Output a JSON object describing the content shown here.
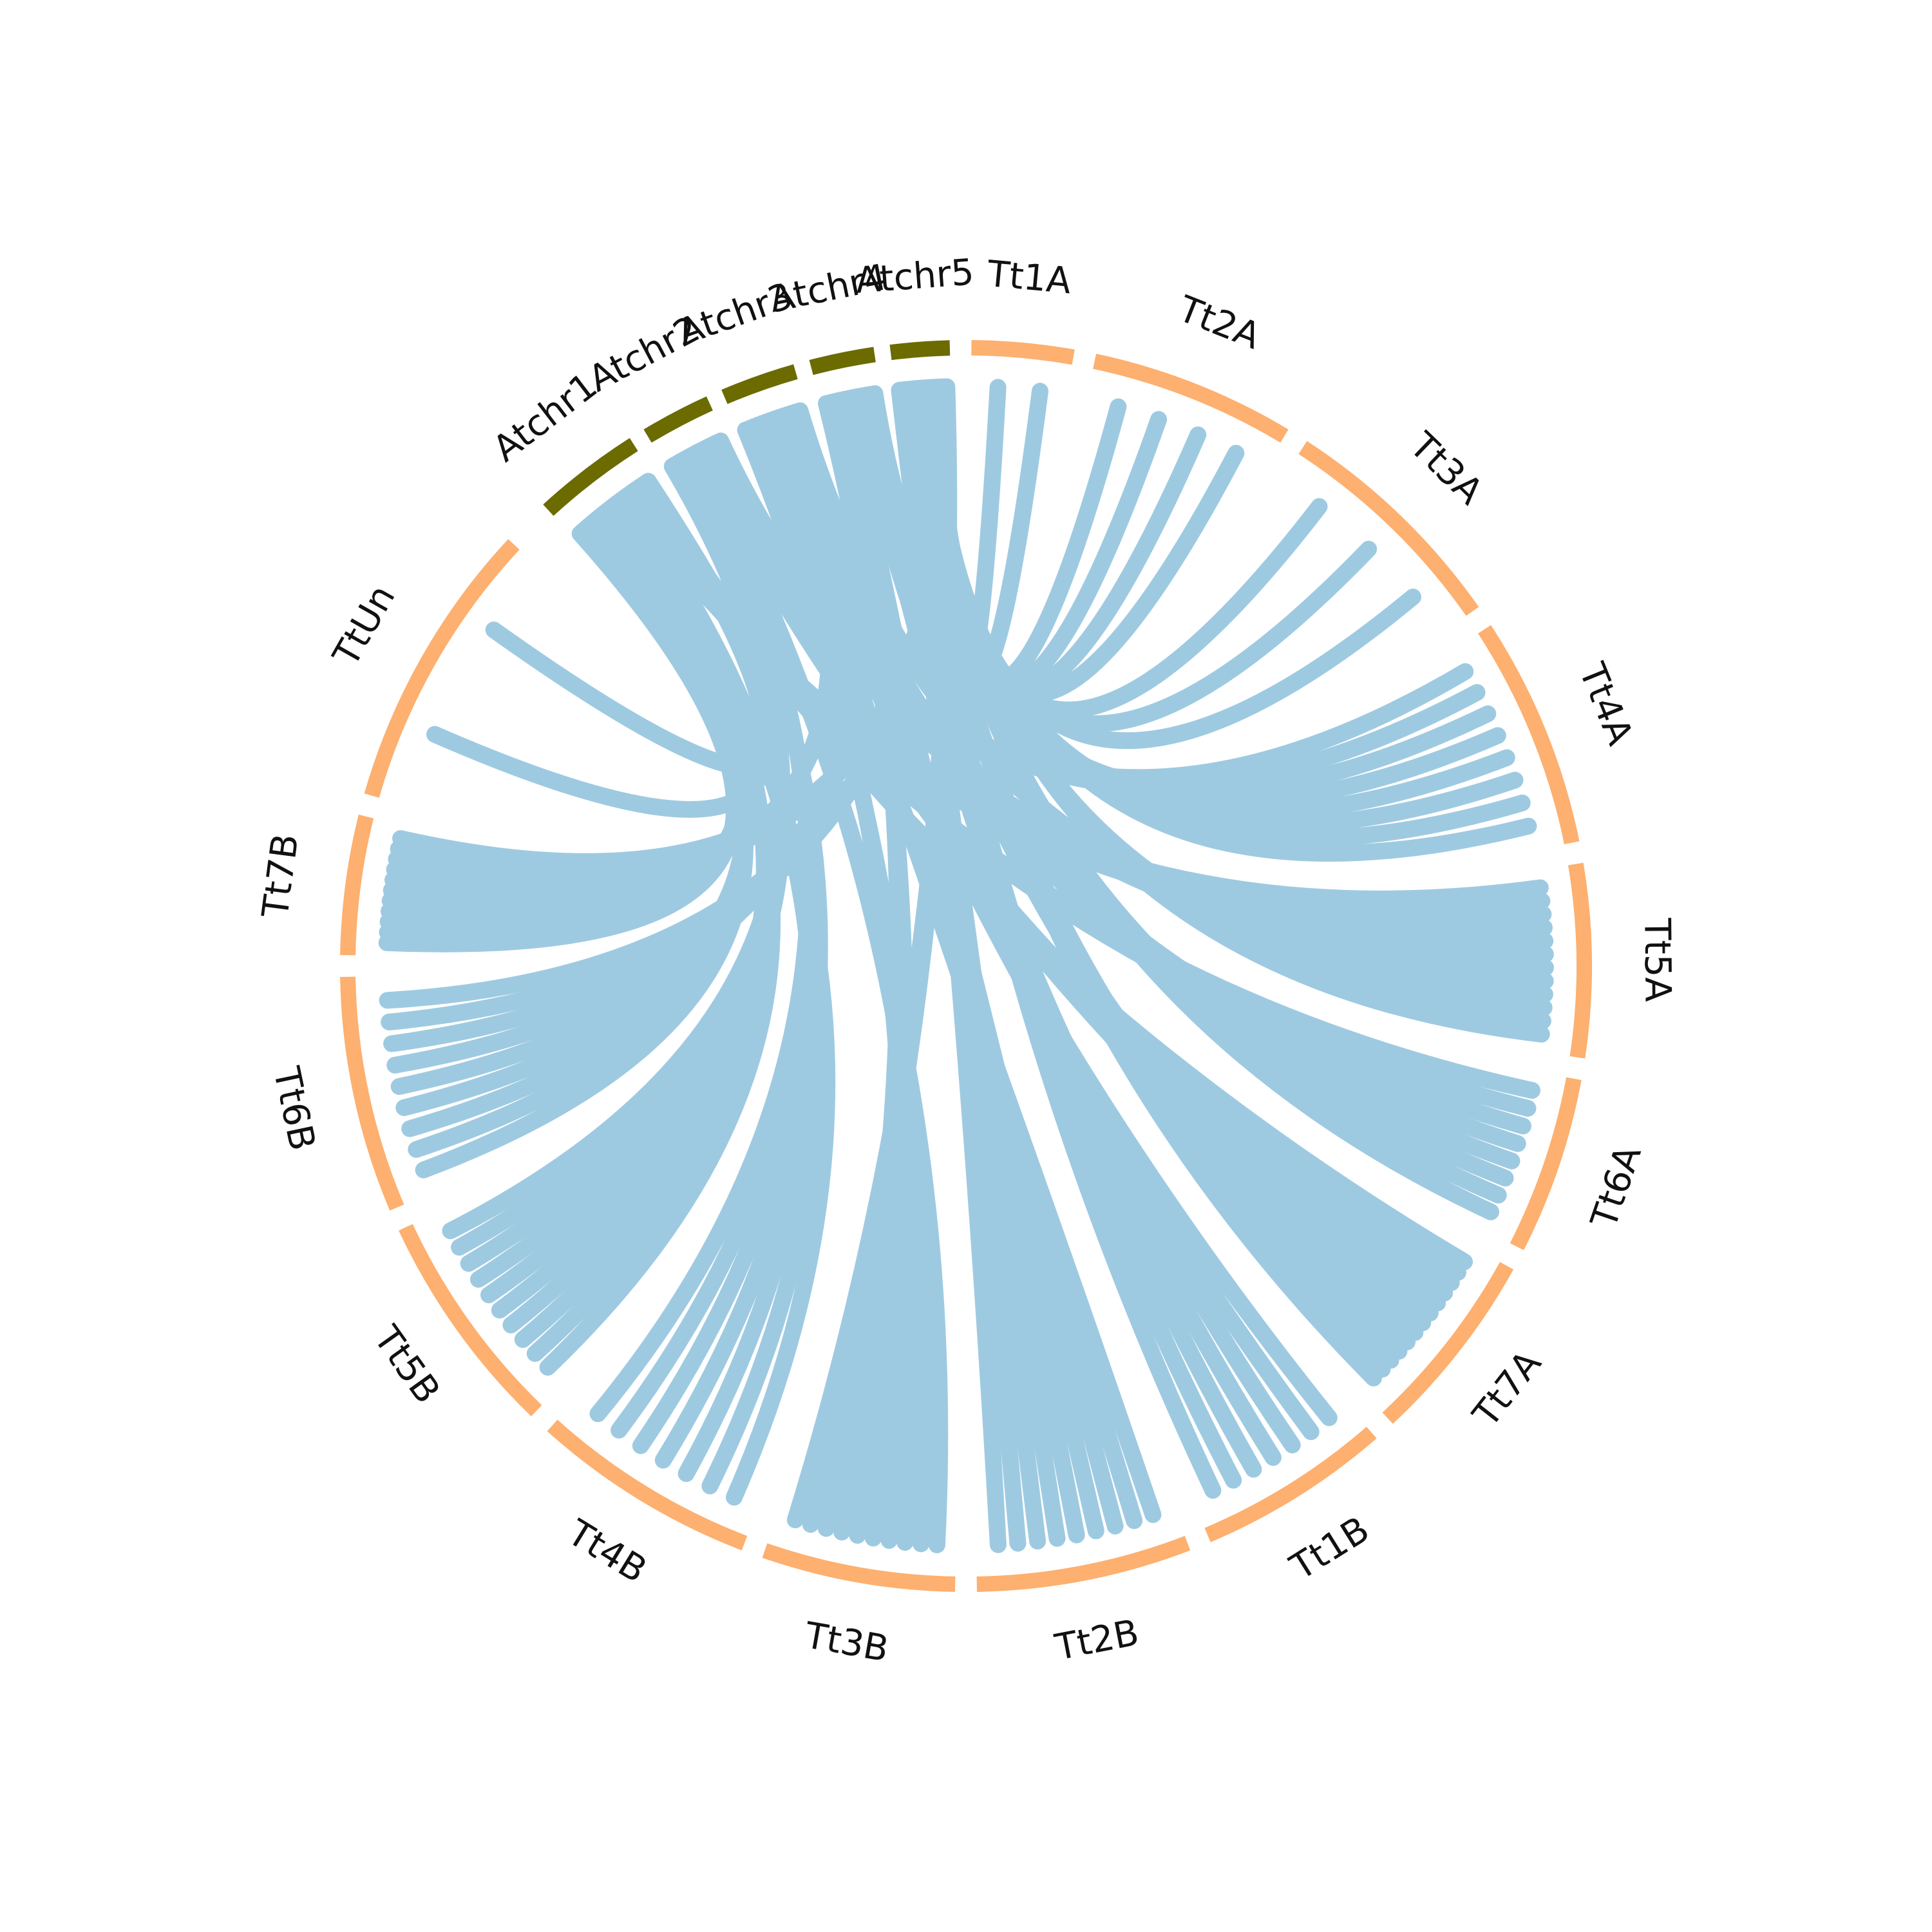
{
  "chart_data": {
    "type": "chord",
    "colors": {
      "arabidopsis": "#6b6b00",
      "wheat": "#fdb06f",
      "link": "#9ecae1"
    },
    "segments": [
      {
        "name": "Atchr1",
        "group": "arabidopsis"
      },
      {
        "name": "Atchr2",
        "group": "arabidopsis"
      },
      {
        "name": "Atchr3",
        "group": "arabidopsis"
      },
      {
        "name": "Atchr4",
        "group": "arabidopsis"
      },
      {
        "name": "Atchr5",
        "group": "arabidopsis"
      },
      {
        "name": "Tt1A",
        "group": "wheat"
      },
      {
        "name": "Tt2A",
        "group": "wheat"
      },
      {
        "name": "Tt3A",
        "group": "wheat"
      },
      {
        "name": "Tt4A",
        "group": "wheat"
      },
      {
        "name": "Tt5A",
        "group": "wheat"
      },
      {
        "name": "Tt6A",
        "group": "wheat"
      },
      {
        "name": "Tt7A",
        "group": "wheat"
      },
      {
        "name": "Tt1B",
        "group": "wheat"
      },
      {
        "name": "Tt2B",
        "group": "wheat"
      },
      {
        "name": "Tt3B",
        "group": "wheat"
      },
      {
        "name": "Tt4B",
        "group": "wheat"
      },
      {
        "name": "Tt5B",
        "group": "wheat"
      },
      {
        "name": "Tt6B",
        "group": "wheat"
      },
      {
        "name": "Tt7B",
        "group": "wheat"
      },
      {
        "name": "TtUn",
        "group": "wheat"
      }
    ],
    "links": [
      {
        "from": "Atchr1",
        "to": "Tt7B",
        "count": 6
      },
      {
        "from": "Atchr1",
        "to": "Tt6B",
        "count": 5
      },
      {
        "from": "Atchr1",
        "to": "Tt5B",
        "count": 6
      },
      {
        "from": "Atchr1",
        "to": "Tt4B",
        "count": 3
      },
      {
        "from": "Atchr1",
        "to": "Tt5A",
        "count": 3
      },
      {
        "from": "Atchr1",
        "to": "Tt6A",
        "count": 2
      },
      {
        "from": "Atchr1",
        "to": "Tt7A",
        "count": 3
      },
      {
        "from": "Atchr1",
        "to": "TtUn",
        "count": 2
      },
      {
        "from": "Atchr2",
        "to": "Tt5B",
        "count": 4
      },
      {
        "from": "Atchr2",
        "to": "Tt4B",
        "count": 4
      },
      {
        "from": "Atchr2",
        "to": "Tt3B",
        "count": 2
      },
      {
        "from": "Atchr2",
        "to": "Tt7A",
        "count": 4
      },
      {
        "from": "Atchr2",
        "to": "Tt5A",
        "count": 3
      },
      {
        "from": "Atchr2",
        "to": "Tt4A",
        "count": 2
      },
      {
        "from": "Atchr3",
        "to": "Tt3B",
        "count": 3
      },
      {
        "from": "Atchr3",
        "to": "Tt2B",
        "count": 2
      },
      {
        "from": "Atchr3",
        "to": "Tt1B",
        "count": 2
      },
      {
        "from": "Atchr3",
        "to": "Tt6A",
        "count": 3
      },
      {
        "from": "Atchr3",
        "to": "Tt7B",
        "count": 2
      },
      {
        "from": "Atchr3",
        "to": "Tt5A",
        "count": 2
      },
      {
        "from": "Atchr4",
        "to": "Tt3B",
        "count": 3
      },
      {
        "from": "Atchr4",
        "to": "Tt2B",
        "count": 3
      },
      {
        "from": "Atchr4",
        "to": "Tt6B",
        "count": 2
      },
      {
        "from": "Atchr4",
        "to": "Tt7A",
        "count": 2
      },
      {
        "from": "Atchr4",
        "to": "Tt1B",
        "count": 2
      },
      {
        "from": "Atchr4",
        "to": "Tt4A",
        "count": 2
      },
      {
        "from": "Atchr5",
        "to": "Tt2B",
        "count": 4
      },
      {
        "from": "Atchr5",
        "to": "Tt1B",
        "count": 3
      },
      {
        "from": "Atchr5",
        "to": "Tt7A",
        "count": 4
      },
      {
        "from": "Atchr5",
        "to": "Tt6A",
        "count": 3
      },
      {
        "from": "Atchr5",
        "to": "Tt5A",
        "count": 4
      },
      {
        "from": "Atchr5",
        "to": "Tt4A",
        "count": 4
      },
      {
        "from": "Atchr5",
        "to": "Tt3A",
        "count": 3
      },
      {
        "from": "Atchr5",
        "to": "Tt2A",
        "count": 4
      },
      {
        "from": "Atchr5",
        "to": "Tt1A",
        "count": 2
      },
      {
        "from": "Atchr5",
        "to": "Tt7B",
        "count": 3
      },
      {
        "from": "Atchr5",
        "to": "Tt6B",
        "count": 2
      },
      {
        "from": "Atchr5",
        "to": "Tt3B",
        "count": 2
      }
    ]
  }
}
